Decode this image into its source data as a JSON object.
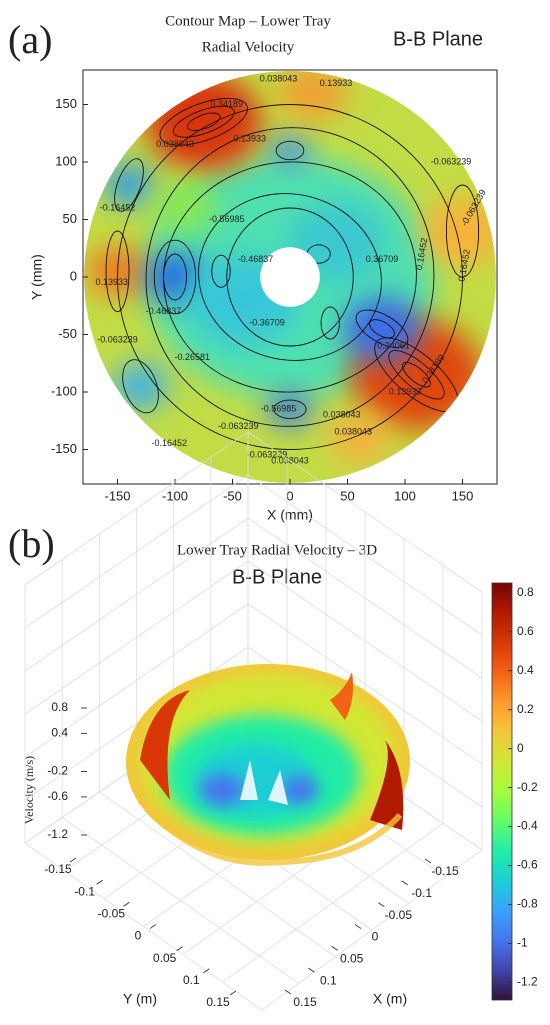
{
  "chart_data": [
    {
      "type": "contour",
      "panel_label": "(a)",
      "title": "Contour Map – Lower Tray",
      "subtitle": "Radial Velocity",
      "plane_label": "B-B Plane",
      "xlabel": "X (mm)",
      "ylabel": "Y (mm)",
      "xlim": [
        -180,
        180
      ],
      "ylim": [
        -180,
        180
      ],
      "xticks": [
        -150,
        -100,
        -50,
        0,
        50,
        100,
        150
      ],
      "yticks": [
        -150,
        -100,
        -50,
        0,
        50,
        100,
        150
      ],
      "contour_labels": [
        0.038043,
        0.13933,
        0.34189,
        0.13933,
        0.038043,
        -0.063239,
        -0.063239,
        0.16452,
        -0.16452,
        -0.56985,
        0.36709,
        -0.46837,
        -0.36709,
        0.13933,
        -0.063239,
        0.24061,
        0.34189,
        0.13933,
        0.038043,
        -0.56985,
        -0.26581,
        -0.063239,
        -0.16452,
        0.038043,
        0.038043,
        -0.063239,
        0.16452,
        -0.46837
      ]
    },
    {
      "type": "surface3d",
      "panel_label": "(b)",
      "title": "Lower Tray Radial Velocity – 3D",
      "subtitle": "B-B Plane",
      "xlabel": "X (m)",
      "ylabel": "Y (m)",
      "zlabel": "Velocity   (m/s)",
      "xlim": [
        -0.15,
        0.15
      ],
      "ylim": [
        -0.15,
        0.15
      ],
      "zlim": [
        -1.2,
        0.8
      ],
      "xticks": [
        -0.15,
        -0.1,
        -0.05,
        0,
        0.05,
        0.1,
        0.15
      ],
      "yticks": [
        -0.15,
        -0.1,
        -0.05,
        0,
        0.05,
        0.1,
        0.15
      ],
      "zticks": [
        0.8,
        0.4,
        -0.2,
        -0.6,
        -1.2
      ],
      "clim": [
        -1.29,
        0.85
      ],
      "cticks": [
        -1.2,
        -1,
        -0.8,
        -0.6,
        -0.4,
        -0.2,
        0,
        0.2,
        0.4,
        0.6,
        0.8
      ],
      "colormap": [
        "#30123b",
        "#4145ab",
        "#4675ed",
        "#39a2fc",
        "#1bcfd4",
        "#24eca6",
        "#61fc6c",
        "#a4fc3b",
        "#d1e834",
        "#f3c63a",
        "#fe9b2d",
        "#f36315",
        "#d93806",
        "#b11901",
        "#7a0403"
      ]
    }
  ]
}
